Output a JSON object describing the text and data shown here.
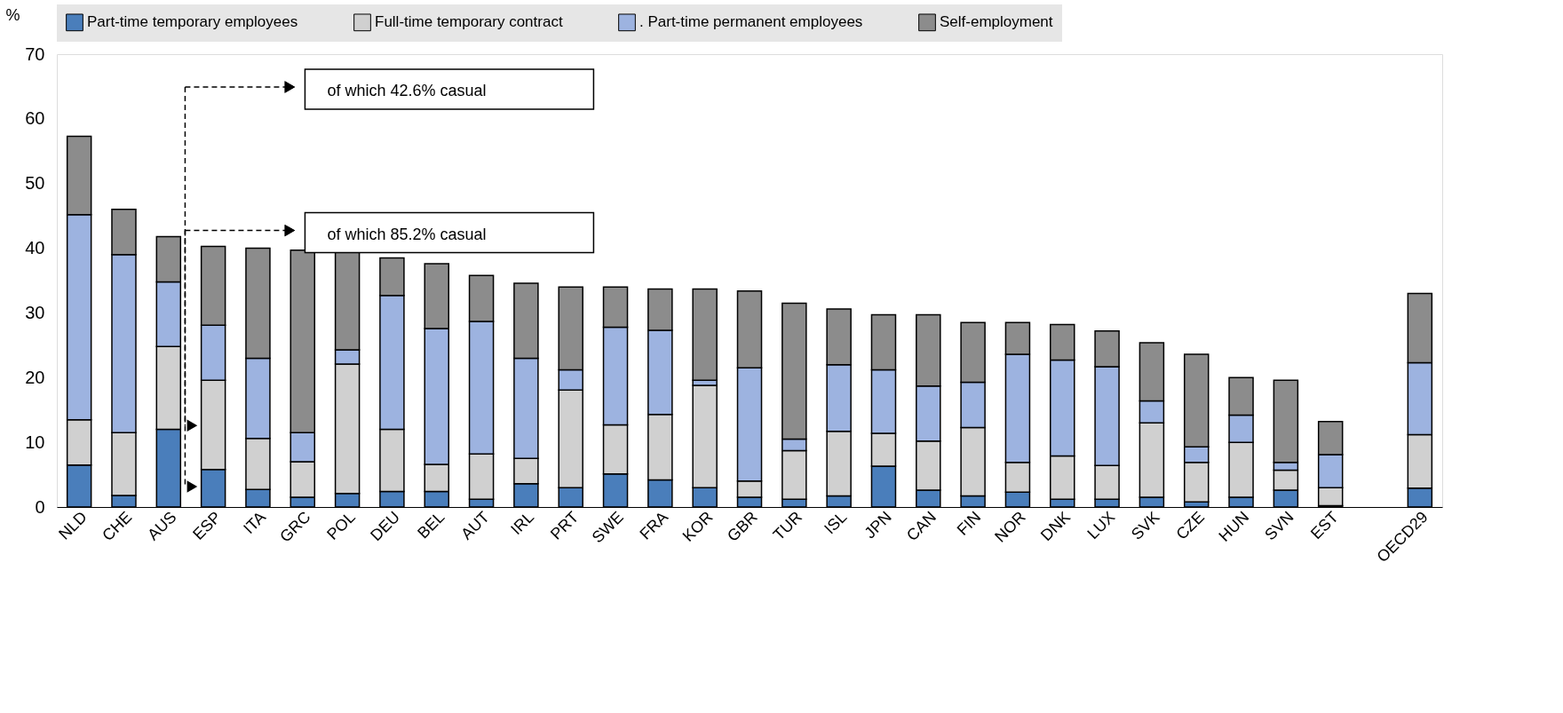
{
  "chart_data": {
    "type": "bar",
    "stacked": true,
    "ylabel": "%",
    "categories": [
      "NLD",
      "CHE",
      "AUS",
      "ESP",
      "ITA",
      "GRC",
      "POL",
      "DEU",
      "BEL",
      "AUT",
      "IRL",
      "PRT",
      "SWE",
      "FRA",
      "KOR",
      "GBR",
      "TUR",
      "ISL",
      "JPN",
      "CAN",
      "FIN",
      "NOR",
      "DNK",
      "LUX",
      "SVK",
      "CZE",
      "HUN",
      "SVN",
      "EST",
      null,
      "OECD29"
    ],
    "series": [
      {
        "name": "Part-time temporary employees",
        "color": "#4a7ebb",
        "values": [
          6.5,
          1.8,
          12,
          5.8,
          2.7,
          1.5,
          2.1,
          2.4,
          2.4,
          1.2,
          3.6,
          3,
          5.1,
          4.2,
          3,
          1.5,
          1.2,
          1.7,
          6.3,
          2.6,
          1.7,
          2.3,
          1.2,
          1.2,
          1.5,
          0.8,
          1.5,
          2.6,
          0.2,
          null,
          2.9
        ]
      },
      {
        "name": "Full-time temporary contract",
        "color": "#d0d0d0",
        "values": [
          7,
          9.7,
          12.8,
          13.8,
          7.9,
          5.5,
          20,
          9.6,
          4.2,
          7,
          3.9,
          15.1,
          7.6,
          10.1,
          15.8,
          2.5,
          7.5,
          10,
          5.1,
          7.6,
          10.6,
          4.6,
          6.7,
          5.2,
          11.5,
          6.1,
          8.5,
          3.1,
          2.8,
          null,
          8.3
        ]
      },
      {
        "name": ". Part-time permanent employees",
        "color": "#9db3e0",
        "values": [
          31.7,
          27.5,
          10,
          8.5,
          12.4,
          4.5,
          2.2,
          20.7,
          21,
          20.5,
          15.5,
          3.1,
          15.1,
          13,
          0.8,
          17.5,
          1.8,
          10.3,
          9.8,
          8.5,
          7,
          16.7,
          14.8,
          15.3,
          3.4,
          2.4,
          4.2,
          1.2,
          5.1,
          null,
          11.1
        ]
      },
      {
        "name": "Self-employment",
        "color": "#8c8c8c",
        "values": [
          12.1,
          7,
          7,
          12.2,
          17,
          28.2,
          15.1,
          5.8,
          10,
          7.1,
          11.6,
          12.8,
          6.2,
          6.4,
          14.1,
          11.9,
          21,
          8.6,
          8.5,
          11,
          9.2,
          4.9,
          5.5,
          5.5,
          9,
          14.3,
          5.8,
          12.7,
          5.1,
          null,
          10.7
        ]
      }
    ],
    "ylim": [
      0,
      70
    ],
    "yticks": [
      0,
      10,
      20,
      30,
      40,
      50,
      60,
      70
    ],
    "grid": false,
    "legend": "top",
    "annotations": [
      "of which 42.6% casual",
      "of which 85.2% casual"
    ]
  }
}
